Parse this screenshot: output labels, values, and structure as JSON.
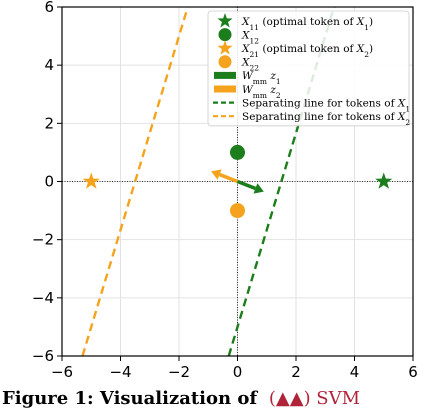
{
  "chart_data": {
    "type": "scatter",
    "xlim": [
      -6,
      6
    ],
    "ylim": [
      -6,
      6
    ],
    "xticks": [
      -6,
      -4,
      -2,
      0,
      2,
      4,
      6
    ],
    "yticks": [
      -6,
      -4,
      -2,
      0,
      2,
      4,
      6
    ],
    "xtick_labels": [
      "−6",
      "−4",
      "−2",
      "0",
      "2",
      "4",
      "6"
    ],
    "ytick_labels": [
      "−6",
      "−4",
      "−2",
      "0",
      "2",
      "4",
      "6"
    ],
    "grid": true,
    "legend_position": "top-right",
    "points": [
      {
        "key": "X11",
        "x": 5,
        "y": 0,
        "marker": "star",
        "color": "#1b7d1b"
      },
      {
        "key": "X12",
        "x": 0,
        "y": 1,
        "marker": "circle",
        "color": "#1b7d1b"
      },
      {
        "key": "X21",
        "x": -5,
        "y": 0,
        "marker": "star",
        "color": "#f5a31c"
      },
      {
        "key": "X22",
        "x": 0,
        "y": -1,
        "marker": "circle",
        "color": "#f5a31c"
      }
    ],
    "arrows": [
      {
        "key": "Wz1",
        "x0": 0,
        "y0": 0,
        "x1": 0.9,
        "y1": -0.35,
        "color": "#1b7d1b"
      },
      {
        "key": "Wz2",
        "x0": 0,
        "y0": 0,
        "x1": -0.9,
        "y1": 0.35,
        "color": "#f5a31c"
      }
    ],
    "lines": [
      {
        "key": "sep1",
        "x0": -0.3,
        "y0": -6,
        "x1": 3.3,
        "y1": 6,
        "color": "#1b7d1b",
        "style": "dashed"
      },
      {
        "key": "sep2",
        "x0": -5.3,
        "y0": -6,
        "x1": -1.7,
        "y1": 6,
        "color": "#f5a31c",
        "style": "dashed"
      }
    ],
    "legend": [
      {
        "key": "X11",
        "symbol": "star",
        "color": "#1b7d1b",
        "main": "X",
        "sub": "11",
        "text": " (optimal token of ",
        "main2": "X",
        "sub2": "1",
        "tail": ")"
      },
      {
        "key": "X12",
        "symbol": "circle",
        "color": "#1b7d1b",
        "main": "X",
        "sub": "12",
        "text": "",
        "main2": "",
        "sub2": "",
        "tail": ""
      },
      {
        "key": "X21",
        "symbol": "star",
        "color": "#f5a31c",
        "main": "X",
        "sub": "21",
        "text": " (optimal token of ",
        "main2": "X",
        "sub2": "2",
        "tail": ")"
      },
      {
        "key": "X22",
        "symbol": "circle",
        "color": "#f5a31c",
        "main": "X",
        "sub": "22",
        "text": "",
        "main2": "",
        "sub2": "",
        "tail": ""
      },
      {
        "key": "Wz1",
        "symbol": "patch",
        "color": "#1b7d1b",
        "main": "W",
        "sub": "mm",
        "text": " z",
        "main2": "",
        "sub2": "1",
        "tail": ""
      },
      {
        "key": "Wz2",
        "symbol": "patch",
        "color": "#f5a31c",
        "main": "W",
        "sub": "mm",
        "text": " z",
        "main2": "",
        "sub2": "2",
        "tail": ""
      },
      {
        "key": "sep1",
        "symbol": "dash",
        "color": "#1b7d1b",
        "main": "",
        "sub": "",
        "text": "Separating line for tokens of ",
        "main2": "X",
        "sub2": "1",
        "tail": ""
      },
      {
        "key": "sep2",
        "symbol": "dash",
        "color": "#f5a31c",
        "main": "",
        "sub": "",
        "text": "Separating line for tokens of ",
        "main2": "X",
        "sub2": "2",
        "tail": ""
      }
    ]
  },
  "caption": {
    "text": "Figure 1: Visualization of",
    "highlight": "(▲▲) SVM"
  }
}
